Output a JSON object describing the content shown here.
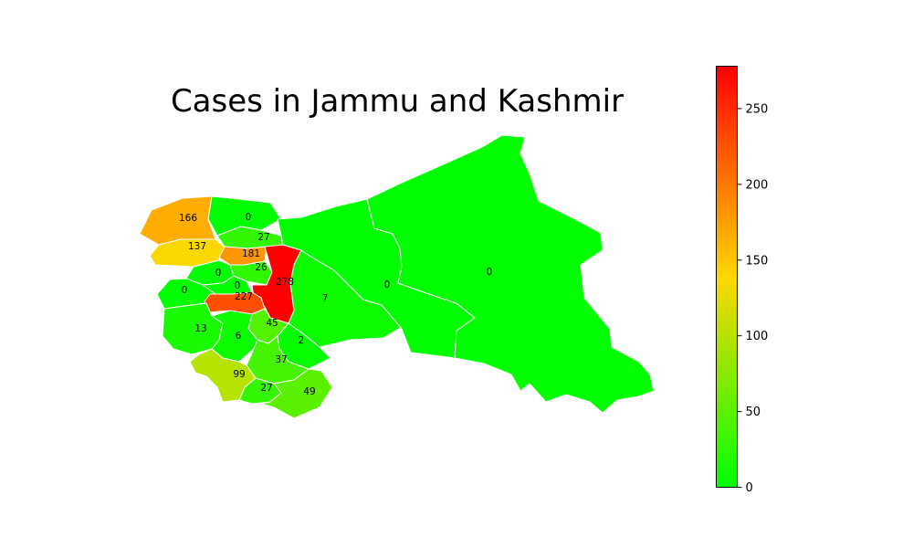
{
  "title": "Cases in Jammu and Kashmir",
  "colorbar": {
    "min": 0,
    "max": 278,
    "ticks": [
      {
        "value": 0,
        "label": "0"
      },
      {
        "value": 50,
        "label": "50"
      },
      {
        "value": 100,
        "label": "100"
      },
      {
        "value": 150,
        "label": "150"
      },
      {
        "value": 200,
        "label": "200"
      },
      {
        "value": 250,
        "label": "250"
      }
    ],
    "colors": [
      "#00ff00",
      "#ffd700",
      "#ff0000"
    ]
  },
  "districts": [
    {
      "id": "d01",
      "value": 166,
      "label": "166"
    },
    {
      "id": "d02",
      "value": 0,
      "label": "0"
    },
    {
      "id": "d03",
      "value": 137,
      "label": "137"
    },
    {
      "id": "d04",
      "value": 27,
      "label": "27"
    },
    {
      "id": "d05",
      "value": 181,
      "label": "181"
    },
    {
      "id": "d06",
      "value": 26,
      "label": "26"
    },
    {
      "id": "d07",
      "value": 0,
      "label": "0"
    },
    {
      "id": "d08",
      "value": 278,
      "label": "278"
    },
    {
      "id": "d09",
      "value": 0,
      "label": "0"
    },
    {
      "id": "d10",
      "value": 0,
      "label": "0"
    },
    {
      "id": "d11",
      "value": 227,
      "label": "227"
    },
    {
      "id": "d12",
      "value": 7,
      "label": "7"
    },
    {
      "id": "d13",
      "value": 0,
      "label": "0"
    },
    {
      "id": "d14",
      "value": 0,
      "label": "0"
    },
    {
      "id": "d15",
      "value": 13,
      "label": "13"
    },
    {
      "id": "d16",
      "value": 45,
      "label": "45"
    },
    {
      "id": "d17",
      "value": 6,
      "label": "6"
    },
    {
      "id": "d18",
      "value": 2,
      "label": "2"
    },
    {
      "id": "d19",
      "value": 37,
      "label": "37"
    },
    {
      "id": "d20",
      "value": 99,
      "label": "99"
    },
    {
      "id": "d21",
      "value": 27,
      "label": "27"
    },
    {
      "id": "d22",
      "value": 49,
      "label": "49"
    }
  ]
}
